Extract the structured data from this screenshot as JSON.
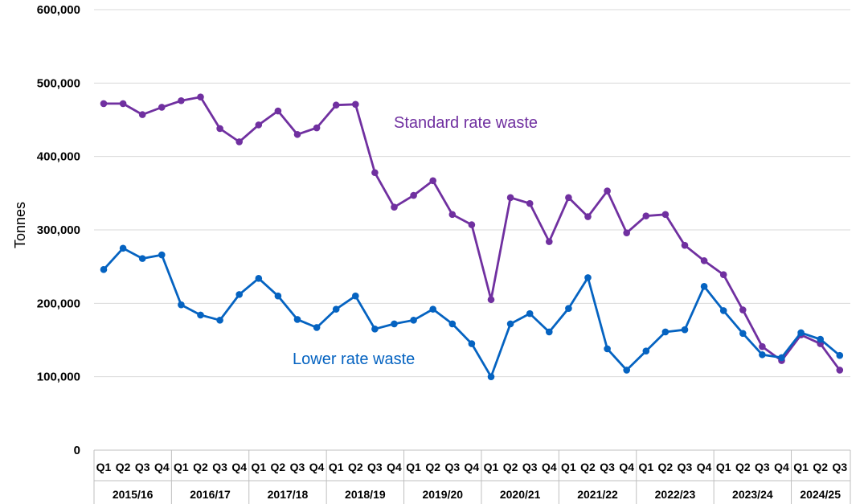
{
  "chart_data": {
    "type": "line",
    "title": "",
    "xlabel": "",
    "ylabel": "Tonnes",
    "ylim": [
      0,
      600000
    ],
    "yticks": [
      0,
      100000,
      200000,
      300000,
      400000,
      500000,
      600000
    ],
    "ytick_labels": [
      "0",
      "100,000",
      "200,000",
      "300,000",
      "400,000",
      "500,000",
      "600,000"
    ],
    "grid": true,
    "years": [
      {
        "label": "2015/16",
        "quarters": [
          "Q1",
          "Q2",
          "Q3",
          "Q4"
        ]
      },
      {
        "label": "2016/17",
        "quarters": [
          "Q1",
          "Q2",
          "Q3",
          "Q4"
        ]
      },
      {
        "label": "2017/18",
        "quarters": [
          "Q1",
          "Q2",
          "Q3",
          "Q4"
        ]
      },
      {
        "label": "2018/19",
        "quarters": [
          "Q1",
          "Q2",
          "Q3",
          "Q4"
        ]
      },
      {
        "label": "2019/20",
        "quarters": [
          "Q1",
          "Q2",
          "Q3",
          "Q4"
        ]
      },
      {
        "label": "2020/21",
        "quarters": [
          "Q1",
          "Q2",
          "Q3",
          "Q4"
        ]
      },
      {
        "label": "2021/22",
        "quarters": [
          "Q1",
          "Q2",
          "Q3",
          "Q4"
        ]
      },
      {
        "label": "2022/23",
        "quarters": [
          "Q1",
          "Q2",
          "Q3",
          "Q4"
        ]
      },
      {
        "label": "2023/24",
        "quarters": [
          "Q1",
          "Q2",
          "Q3",
          "Q4"
        ]
      },
      {
        "label": "2024/25",
        "quarters": [
          "Q1",
          "Q2",
          "Q3"
        ]
      }
    ],
    "series": [
      {
        "name": "Standard rate waste",
        "color": "#7030a0",
        "values": [
          472000,
          472000,
          457000,
          467000,
          476000,
          481000,
          438000,
          420000,
          443000,
          462000,
          430000,
          439000,
          470000,
          471000,
          378000,
          331000,
          347000,
          367000,
          321000,
          307000,
          205000,
          344000,
          336000,
          284000,
          344000,
          318000,
          353000,
          296000,
          319000,
          321000,
          279000,
          258000,
          239000,
          191000,
          141000,
          122000,
          157000,
          145000,
          109000
        ]
      },
      {
        "name": "Lower rate waste",
        "color": "#0563c1",
        "values": [
          246000,
          275000,
          261000,
          266000,
          198000,
          184000,
          177000,
          212000,
          234000,
          210000,
          178000,
          167000,
          192000,
          210000,
          165000,
          172000,
          177000,
          192000,
          172000,
          145000,
          100000,
          172000,
          186000,
          161000,
          193000,
          235000,
          138000,
          109000,
          135000,
          161000,
          164000,
          223000,
          190000,
          159000,
          130000,
          126000,
          160000,
          151000,
          129000
        ]
      }
    ]
  }
}
